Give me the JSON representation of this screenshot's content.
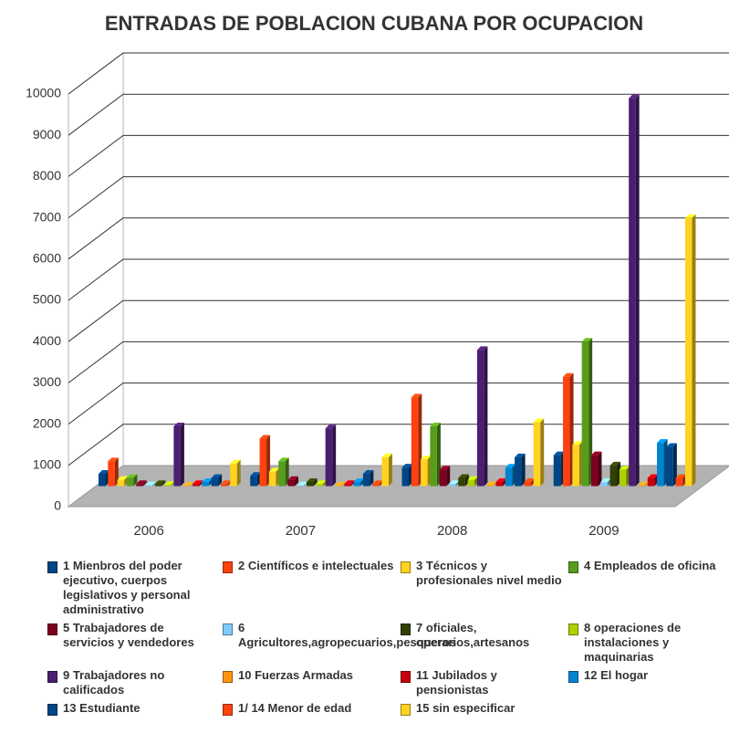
{
  "chart_data": {
    "type": "bar3d",
    "title": "ENTRADAS DE POBLACION CUBANA POR OCUPACION",
    "categories": [
      "2006",
      "2007",
      "2008",
      "2009"
    ],
    "ylim": [
      0,
      10000
    ],
    "yticks": [
      0,
      1000,
      2000,
      3000,
      4000,
      5000,
      6000,
      7000,
      8000,
      9000,
      10000
    ],
    "grid": true,
    "series": [
      {
        "name": "1 Mienbros del poder ejecutivo, cuerpos legislativos y personal administrativo",
        "color": "#004586",
        "values": [
          300,
          250,
          450,
          750
        ]
      },
      {
        "name": "2 Científicos e intelectuales",
        "color": "#ff420e",
        "values": [
          600,
          1150,
          2150,
          2650
        ]
      },
      {
        "name": "3 Técnicos  y profesionales nivel medio",
        "color": "#ffd320",
        "values": [
          150,
          350,
          650,
          1000
        ]
      },
      {
        "name": "4 Empleados de oficina",
        "color": "#579d1c",
        "values": [
          200,
          600,
          1450,
          3500
        ]
      },
      {
        "name": "5 Trabajadores de servicios y vendedores",
        "color": "#7e0021",
        "values": [
          50,
          150,
          400,
          750
        ]
      },
      {
        "name": "6 Agricultores,agropecuarios,pesqueros",
        "color": "#83caff",
        "values": [
          20,
          20,
          50,
          100
        ]
      },
      {
        "name": "7 oficiales, operarios,artesanos",
        "color": "#314004",
        "values": [
          50,
          100,
          200,
          500
        ]
      },
      {
        "name": "8 operaciones de instalaciones y maquinarias",
        "color": "#aecf00",
        "values": [
          30,
          50,
          150,
          400
        ]
      },
      {
        "name": "9 Trabajadores no calificados",
        "color": "#4b1f6f",
        "values": [
          1450,
          1400,
          3300,
          9400
        ]
      },
      {
        "name": "10 Fuerzas Armadas",
        "color": "#ff950e",
        "values": [
          10,
          10,
          20,
          20
        ]
      },
      {
        "name": "11 Jubilados y pensionistas",
        "color": "#c5000b",
        "values": [
          50,
          50,
          100,
          200
        ]
      },
      {
        "name": "12 El hogar",
        "color": "#0084d1",
        "values": [
          100,
          100,
          450,
          1050
        ]
      },
      {
        "name": "13 Estudiante",
        "color": "#004586",
        "values": [
          200,
          300,
          700,
          950
        ]
      },
      {
        "name": "1/   14 Menor de edad",
        "color": "#ff420e",
        "values": [
          50,
          50,
          100,
          200
        ]
      },
      {
        "name": "15 sin especificar",
        "color": "#ffd320",
        "values": [
          550,
          700,
          1550,
          6500
        ]
      }
    ]
  }
}
